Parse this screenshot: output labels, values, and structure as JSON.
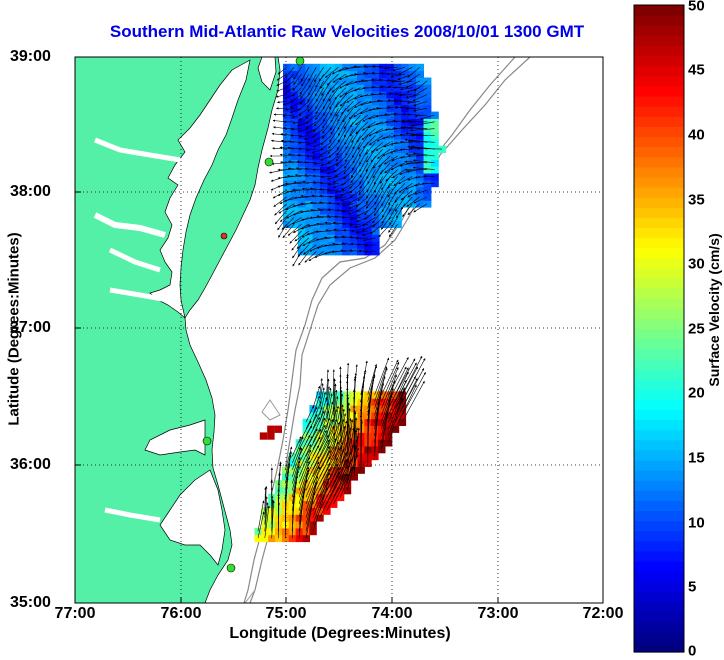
{
  "title": "Southern Mid-Atlantic Raw Velocities 2008/10/01 1300 GMT",
  "x_axis": {
    "label": "Longitude (Degrees:Minutes)",
    "ticks": [
      "77:00",
      "76:00",
      "75:00",
      "74:00",
      "73:00",
      "72:00"
    ]
  },
  "y_axis": {
    "label": "Latitude (Degrees:Minutes)",
    "ticks": [
      "39:00",
      "38:00",
      "37:00",
      "36:00",
      "35:00"
    ]
  },
  "colorbar": {
    "label": "Surface Velocity (cm/s)",
    "ticks": [
      "50",
      "45",
      "40",
      "35",
      "30",
      "25",
      "20",
      "15",
      "10",
      "5",
      "0"
    ],
    "min": 0,
    "max": 50
  },
  "colors": {
    "land": "#55f0a8",
    "title": "#0000e6",
    "station_active": "#33dd33",
    "station_inactive": "#dd3322"
  },
  "chart_data": {
    "type": "heatmap",
    "title": "Southern Mid-Atlantic Raw Velocities 2008/10/01 1300 GMT",
    "xlabel": "Longitude (Degrees:Minutes)",
    "ylabel": "Latitude (Degrees:Minutes)",
    "colorbar_label": "Surface Velocity (cm/s)",
    "xlim": [
      "77:00",
      "72:00"
    ],
    "ylim": [
      "35:00",
      "39:00"
    ],
    "clim": [
      0,
      50
    ],
    "grid": true,
    "stations": [
      {
        "lon": -74.9,
        "lat": 38.95,
        "status": "active"
      },
      {
        "lon": -75.15,
        "lat": 38.22,
        "status": "active"
      },
      {
        "lon": -75.58,
        "lat": 37.7,
        "status": "inactive"
      },
      {
        "lon": -75.75,
        "lat": 36.18,
        "status": "active"
      },
      {
        "lon": -75.5,
        "lat": 35.25,
        "status": "active"
      }
    ],
    "regions": [
      {
        "name_hint": "north",
        "lon_range": [
          -75.1,
          -73.5
        ],
        "lat_range": [
          37.55,
          38.92
        ],
        "speed_range_cm_s": [
          3,
          25
        ],
        "mean_direction": "southwest"
      },
      {
        "name_hint": "south",
        "lon_range": [
          -75.3,
          -73.9
        ],
        "lat_range": [
          35.35,
          36.55
        ],
        "speed_range_cm_s": [
          10,
          50
        ],
        "mean_direction": "north-northeast"
      }
    ]
  }
}
